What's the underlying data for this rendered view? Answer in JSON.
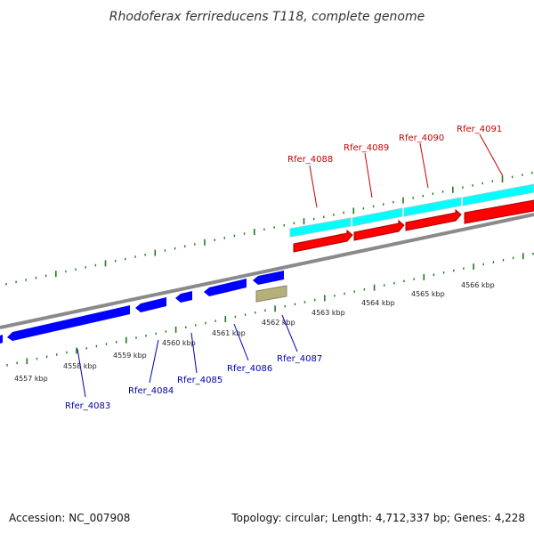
{
  "title": "Rhodoferax ferrireducens T118, complete genome",
  "footer": {
    "accession": "Accession: NC_007908",
    "topology": "Topology: circular; Length: 4,712,337 bp; Genes: 4,228"
  },
  "colors": {
    "backbone": "#8a8a8a",
    "tick": "#1f7a1f",
    "forward_cds": "#ff0000",
    "forward_feature": "#00ffff",
    "reverse_cds": "#0000ff",
    "other_feature": "#b5b07a",
    "forward_label": "#cc0000",
    "reverse_label": "#0000b0"
  },
  "scale": {
    "unit": "kbp",
    "labels": [
      "4557 kbp",
      "4558 kbp",
      "4559 kbp",
      "4560 kbp",
      "4561 kbp",
      "4562 kbp",
      "4563 kbp",
      "4564 kbp",
      "4565 kbp",
      "4566 kbp"
    ]
  },
  "forward_genes": [
    "Rfer_4088",
    "Rfer_4089",
    "Rfer_4090",
    "Rfer_4091"
  ],
  "reverse_genes": [
    "Rfer_4083",
    "Rfer_4084",
    "Rfer_4085",
    "Rfer_4086",
    "Rfer_4087"
  ]
}
